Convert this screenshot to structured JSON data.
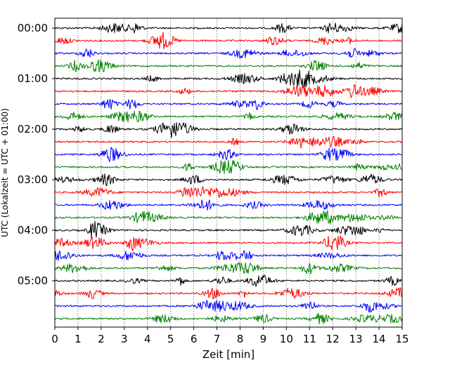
{
  "chart_data": {
    "type": "line",
    "title": "",
    "xlabel": "Zeit  [min]",
    "ylabel": "UTC (Lokalzeit = UTC + 01:00)",
    "xlim": [
      0,
      15
    ],
    "x_ticks": [
      "0",
      "1",
      "2",
      "3",
      "4",
      "5",
      "6",
      "7",
      "8",
      "9",
      "10",
      "11",
      "12",
      "13",
      "14",
      "15"
    ],
    "y_tick_labels": [
      "00:00",
      "01:00",
      "02:00",
      "03:00",
      "04:00",
      "05:00"
    ],
    "grid": "vertical dotted lines at each minute",
    "trace_count": 24,
    "trace_interval_minutes": 15,
    "trace_colors": [
      "#000000",
      "#ff0000",
      "#0000ff",
      "#008000"
    ],
    "trace_amplitude_relative": 0.12
  }
}
